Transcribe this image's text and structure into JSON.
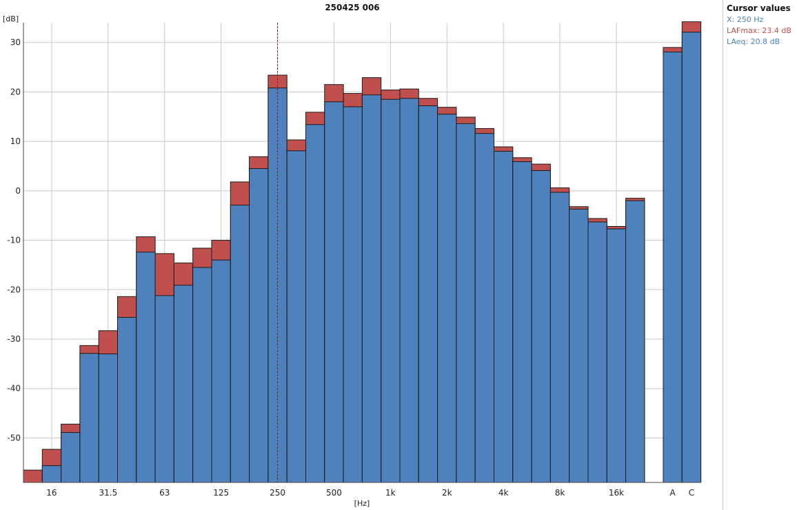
{
  "chart_data": {
    "type": "bar",
    "title": "250425 006",
    "ylabel": "[dB]",
    "xlabel": "[Hz]",
    "ylim": [
      -59,
      34
    ],
    "yticks": [
      30,
      20,
      10,
      0,
      -10,
      -20,
      -30,
      -40,
      -50
    ],
    "categories": [
      "12.5",
      "16",
      "20",
      "25",
      "31.5",
      "40",
      "50",
      "63",
      "80",
      "100",
      "125",
      "160",
      "200",
      "250",
      "315",
      "400",
      "500",
      "630",
      "800",
      "1k",
      "1.25k",
      "1.6k",
      "2k",
      "2.5k",
      "3.15k",
      "4k",
      "5k",
      "6.3k",
      "8k",
      "10k",
      "12.5k",
      "16k",
      "20k",
      "A",
      "C"
    ],
    "x_tick_labels": [
      "16",
      "31.5",
      "63",
      "125",
      "250",
      "500",
      "1k",
      "2k",
      "4k",
      "8k",
      "16k",
      "A",
      "C"
    ],
    "series": [
      {
        "name": "LAFmax",
        "color": "#c0504d",
        "values": [
          -56.5,
          -52.3,
          -47.2,
          -31.3,
          -28.3,
          -21.4,
          -9.3,
          -12.7,
          -14.6,
          -11.6,
          -10.0,
          1.8,
          6.9,
          23.4,
          10.3,
          15.9,
          21.5,
          19.7,
          22.9,
          20.4,
          20.6,
          18.7,
          16.9,
          14.9,
          12.6,
          8.9,
          6.7,
          5.4,
          0.6,
          -3.2,
          -5.6,
          -7.2,
          -1.5,
          29.0,
          34.2
        ]
      },
      {
        "name": "LAeq",
        "color": "#4f81bd",
        "values": [
          -59.0,
          -55.6,
          -48.9,
          -32.9,
          -33.0,
          -25.6,
          -12.4,
          -21.2,
          -19.1,
          -15.5,
          -14.0,
          -2.9,
          4.5,
          20.8,
          8.1,
          13.4,
          18.0,
          17.0,
          19.4,
          18.5,
          18.7,
          17.2,
          15.5,
          13.6,
          11.6,
          8.0,
          5.9,
          4.1,
          -0.3,
          -3.7,
          -6.3,
          -7.7,
          -2.0,
          28.1,
          32.1
        ]
      }
    ],
    "cursor": {
      "category": "250"
    },
    "grid": true,
    "legend": "right panel"
  },
  "cursor_panel": {
    "title": "Cursor values",
    "x_text": "X: 250 Hz",
    "lafmax_text": "LAFmax: 23.4 dB",
    "laeq_text": "LAeq: 20.8 dB",
    "colors": {
      "x": "#4f81bd",
      "lafmax": "#c0504d",
      "laeq": "#4f81bd"
    }
  }
}
